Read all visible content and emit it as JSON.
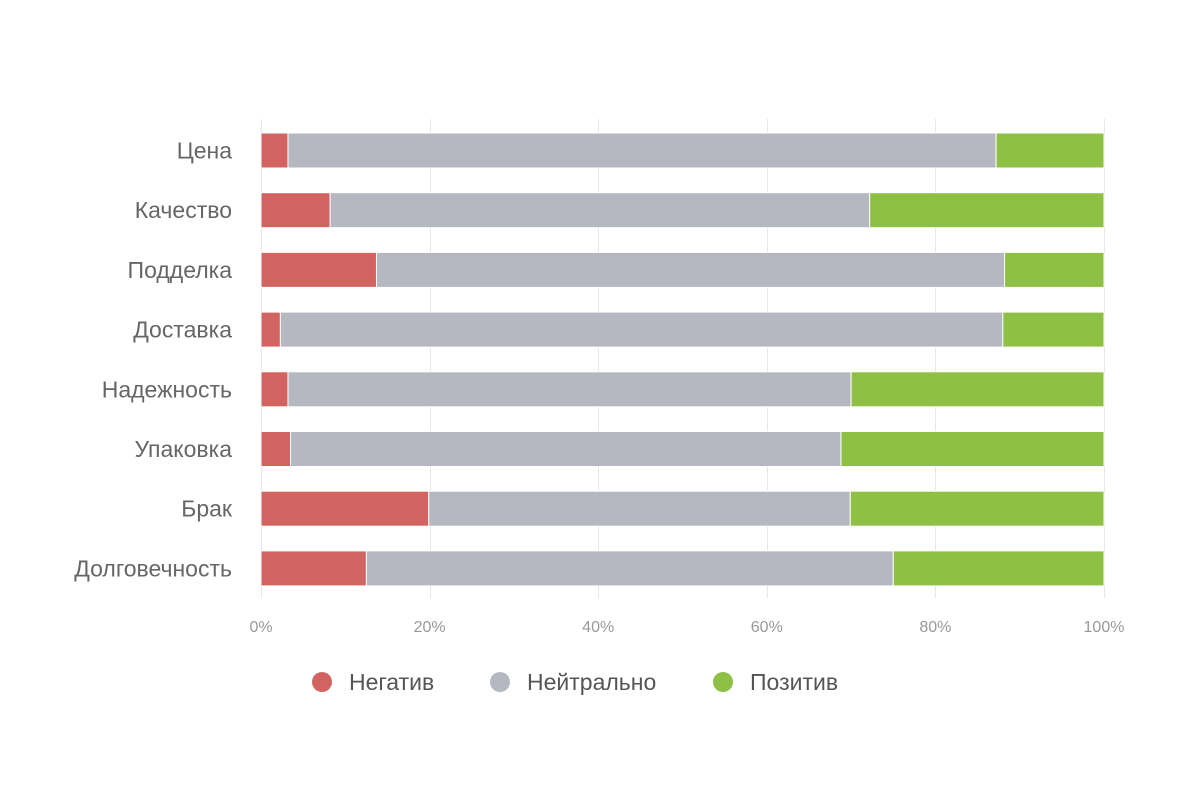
{
  "chart_data": {
    "type": "bar",
    "orientation": "horizontal",
    "stacked": "percent",
    "title": "",
    "xlabel": "",
    "ylabel": "",
    "xlim": [
      0,
      100
    ],
    "x_ticks": [
      "0%",
      "20%",
      "40%",
      "60%",
      "80%",
      "100%"
    ],
    "grid": true,
    "legend_position": "bottom",
    "categories": [
      "Цена",
      "Качество",
      "Подделка",
      "Доставка",
      "Надежность",
      "Упаковка",
      "Брак",
      "Долговечность"
    ],
    "series": [
      {
        "name": "Негатив",
        "color": "#d16461",
        "values": [
          3.2,
          8.2,
          13.7,
          2.3,
          3.2,
          3.5,
          19.9,
          12.5
        ]
      },
      {
        "name": "Нейтрально",
        "color": "#b5b8c1",
        "values": [
          84.0,
          64.0,
          74.5,
          85.7,
          66.8,
          65.3,
          50.0,
          62.5
        ]
      },
      {
        "name": "Позитив",
        "color": "#8ec045",
        "values": [
          12.8,
          27.8,
          11.8,
          12.0,
          30.0,
          31.2,
          30.1,
          25.0
        ]
      }
    ]
  }
}
